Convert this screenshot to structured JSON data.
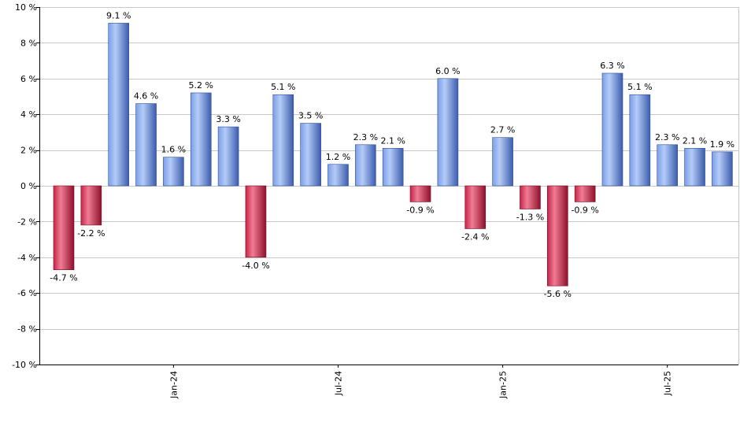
{
  "chart_data": {
    "type": "bar",
    "ylim": [
      -10,
      10
    ],
    "y_ticks": [
      10,
      8,
      6,
      4,
      2,
      0,
      -2,
      -4,
      -6,
      -8,
      -10
    ],
    "y_tick_suffix": " %",
    "grid": true,
    "value_label_suffix": " %",
    "x_tick_labels": [
      {
        "bar_index": 4,
        "label": "Jan-24"
      },
      {
        "bar_index": 10,
        "label": "Jul-24"
      },
      {
        "bar_index": 16,
        "label": "Jan-25"
      },
      {
        "bar_index": 22,
        "label": "Jul-25"
      }
    ],
    "values": [
      -4.7,
      -2.2,
      9.1,
      4.6,
      1.6,
      5.2,
      3.3,
      -4.0,
      5.1,
      3.5,
      1.2,
      2.3,
      2.1,
      -0.9,
      6.0,
      -2.4,
      2.7,
      -1.3,
      -5.6,
      -0.9,
      6.3,
      5.1,
      2.3,
      2.1,
      1.9
    ],
    "colors": {
      "positive": "#6f95e0",
      "negative": "#c22c4d"
    }
  }
}
